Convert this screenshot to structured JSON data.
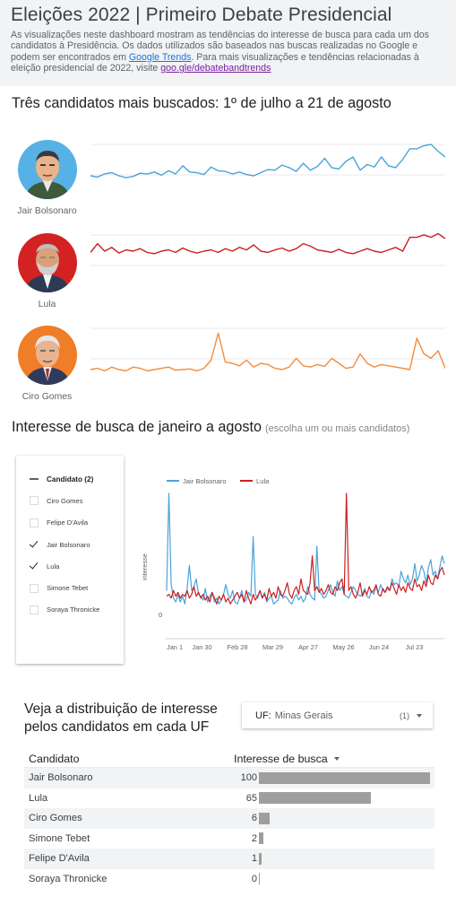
{
  "header": {
    "title": "Eleições 2022 | Primeiro Debate Presidencial",
    "desc_part1": "As visualizações neste dashboard mostram as tendências do interesse de busca para cada um dos candidatos à Presidência. Os dados utilizados são baseados nas buscas realizadas no Google e podem ser encontrados em ",
    "link1": "Google Trends",
    "desc_part2": ". Para mais visualizações e tendências relacionadas à eleição presidencial de 2022, visite ",
    "link2": "goo.gle/debatebandtrends"
  },
  "section1": {
    "title": "Três candidatos mais buscados: 1º de julho a 21 de agosto"
  },
  "candidates": [
    {
      "name": "Jair Bolsonaro",
      "color": "#4ba3d9",
      "bg": "#56b1e6"
    },
    {
      "name": "Lula",
      "color": "#cc1f1f",
      "bg": "#d32222"
    },
    {
      "name": "Ciro Gomes",
      "color": "#f28c3c",
      "bg": "#f07d28"
    }
  ],
  "sparklines": {
    "bolsonaro": [
      30,
      28,
      33,
      35,
      30,
      27,
      29,
      34,
      33,
      36,
      31,
      38,
      33,
      46,
      36,
      35,
      32,
      44,
      38,
      37,
      33,
      36,
      32,
      30,
      35,
      40,
      39,
      47,
      43,
      37,
      50,
      39,
      45,
      58,
      43,
      41,
      53,
      60,
      39,
      48,
      44,
      60,
      46,
      43,
      56,
      73,
      73,
      78,
      80,
      69,
      60
    ],
    "lula": [
      58,
      72,
      60,
      66,
      57,
      62,
      60,
      64,
      58,
      56,
      60,
      62,
      58,
      65,
      60,
      57,
      60,
      62,
      58,
      64,
      60,
      66,
      62,
      70,
      60,
      58,
      62,
      65,
      60,
      64,
      72,
      68,
      62,
      60,
      58,
      63,
      58,
      56,
      60,
      64,
      60,
      58,
      62,
      66,
      60,
      82,
      82,
      86,
      82,
      88,
      80
    ],
    "ciro": [
      20,
      22,
      18,
      24,
      20,
      18,
      24,
      22,
      18,
      20,
      22,
      24,
      19,
      20,
      21,
      18,
      22,
      35,
      78,
      32,
      30,
      26,
      35,
      24,
      30,
      28,
      22,
      20,
      24,
      38,
      26,
      24,
      28,
      25,
      38,
      30,
      22,
      24,
      45,
      30,
      24,
      28,
      26,
      24,
      22,
      20,
      70,
      45,
      38,
      50,
      22
    ]
  },
  "section2": {
    "title": "Interesse de busca de janeiro a agosto",
    "subtitle": "(escolha um ou mais candidatos)"
  },
  "filter": {
    "header": "Candidato (2)",
    "items": [
      {
        "label": "Ciro Gomes",
        "checked": false
      },
      {
        "label": "Felipe D'Avila",
        "checked": false
      },
      {
        "label": "Jair Bolsonaro",
        "checked": true
      },
      {
        "label": "Lula",
        "checked": true
      },
      {
        "label": "Simone Tebet",
        "checked": false
      },
      {
        "label": "Soraya Thronicke",
        "checked": false
      }
    ]
  },
  "chart_data": {
    "type": "line",
    "ylabel": "interesse",
    "ytick": "0",
    "x_ticks": [
      "Jan 1",
      "Jan 30",
      "Feb 28",
      "Mar 29",
      "Apr 27",
      "May 26",
      "Jun 24",
      "Jul 23"
    ],
    "series": [
      {
        "name": "Jair Bolsonaro",
        "color": "#4ba3d9",
        "values": [
          12,
          75,
          15,
          8,
          6,
          10,
          6,
          9,
          5,
          13,
          25,
          12,
          14,
          18,
          10,
          9,
          7,
          13,
          6,
          9,
          11,
          6,
          8,
          5,
          7,
          10,
          15,
          10,
          8,
          12,
          6,
          5,
          8,
          12,
          6,
          7,
          11,
          9,
          40,
          10,
          8,
          12,
          8,
          11,
          6,
          8,
          9,
          5,
          6,
          7,
          12,
          8,
          9,
          8,
          6,
          5,
          8,
          10,
          7,
          9,
          6,
          8,
          14,
          10,
          8,
          7,
          35,
          12,
          10,
          8,
          9,
          12,
          15,
          11,
          9,
          17,
          12,
          14,
          10,
          9,
          8,
          11,
          14,
          12,
          10,
          9,
          10,
          13,
          9,
          8,
          12,
          10,
          14,
          11,
          15,
          12,
          11,
          13,
          12,
          18,
          15,
          16,
          14,
          22,
          18,
          16,
          20,
          15,
          18,
          26,
          17,
          20,
          25,
          22,
          16,
          24,
          28,
          20,
          22,
          18,
          24,
          30,
          26
        ]
      },
      {
        "name": "Lula",
        "color": "#cc1f1f",
        "values": [
          9,
          10,
          8,
          12,
          9,
          11,
          8,
          10,
          9,
          12,
          8,
          10,
          14,
          9,
          11,
          8,
          10,
          7,
          9,
          6,
          11,
          8,
          5,
          9,
          7,
          10,
          6,
          8,
          5,
          7,
          9,
          11,
          8,
          10,
          6,
          12,
          8,
          5,
          10,
          7,
          9,
          12,
          8,
          10,
          7,
          13,
          9,
          11,
          8,
          14,
          10,
          9,
          12,
          16,
          10,
          8,
          12,
          14,
          10,
          18,
          12,
          11,
          10,
          16,
          30,
          12,
          14,
          11,
          13,
          10,
          12,
          15,
          11,
          10,
          14,
          12,
          16,
          18,
          10,
          70,
          12,
          14,
          10,
          8,
          11,
          16,
          9,
          12,
          10,
          14,
          11,
          12,
          15,
          10,
          9,
          13,
          11,
          14,
          12,
          16,
          13,
          10,
          15,
          12,
          14,
          11,
          16,
          13,
          12,
          18,
          14,
          15,
          12,
          17,
          14,
          20,
          16,
          15,
          20,
          18,
          22,
          24,
          20
        ]
      }
    ]
  },
  "section3": {
    "title": "Veja a distribuição de interesse pelos candidatos em cada UF",
    "uf_label": "UF:",
    "uf_value": "Minas Gerais",
    "uf_count": "(1)"
  },
  "table": {
    "col1": "Candidato",
    "col2": "Interesse de busca",
    "rows": [
      {
        "name": "Jair Bolsonaro",
        "value": 100
      },
      {
        "name": "Lula",
        "value": 65
      },
      {
        "name": "Ciro Gomes",
        "value": 6
      },
      {
        "name": "Simone Tebet",
        "value": 2
      },
      {
        "name": "Felipe D'Avila",
        "value": 1
      },
      {
        "name": "Soraya Thronicke",
        "value": 0
      }
    ]
  }
}
